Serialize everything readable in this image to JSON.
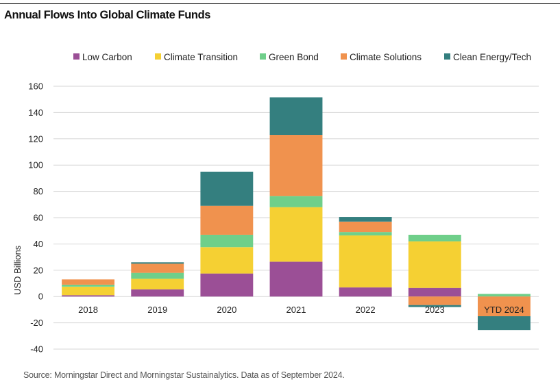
{
  "title": "Annual Flows Into Global Climate Funds",
  "source": "Source: Morningstar Direct and Morningstar Sustainalytics. Data as of September 2024.",
  "chart_data": {
    "type": "bar",
    "stacked": true,
    "categories": [
      "2018",
      "2019",
      "2020",
      "2021",
      "2022",
      "2023",
      "YTD 2024"
    ],
    "series": [
      {
        "name": "Low Carbon",
        "color": "#9b4f96",
        "values": [
          1,
          5.5,
          17.5,
          26.5,
          7,
          6.5,
          0
        ]
      },
      {
        "name": "Climate Transition",
        "color": "#f5d033",
        "values": [
          6.5,
          8,
          20,
          41.5,
          39.5,
          35.5,
          0
        ]
      },
      {
        "name": "Green Bond",
        "color": "#6fcf8a",
        "values": [
          1.5,
          4.5,
          9.5,
          8.5,
          2.5,
          5,
          2
        ]
      },
      {
        "name": "Climate Solutions",
        "color": "#f0924e",
        "values": [
          4,
          7,
          22,
          46.5,
          8,
          -6.5,
          -15
        ]
      },
      {
        "name": "Clean Energy/Tech",
        "color": "#347f7f",
        "values": [
          0,
          1,
          26,
          28.5,
          3.5,
          -1.5,
          -10.5
        ]
      }
    ],
    "ylabel": "USD Billions",
    "xlabel": "",
    "ylim": [
      -40,
      160
    ],
    "yticks": [
      160,
      140,
      120,
      100,
      80,
      60,
      40,
      20,
      0,
      -20,
      -40
    ],
    "grid": true,
    "legend": "top"
  }
}
